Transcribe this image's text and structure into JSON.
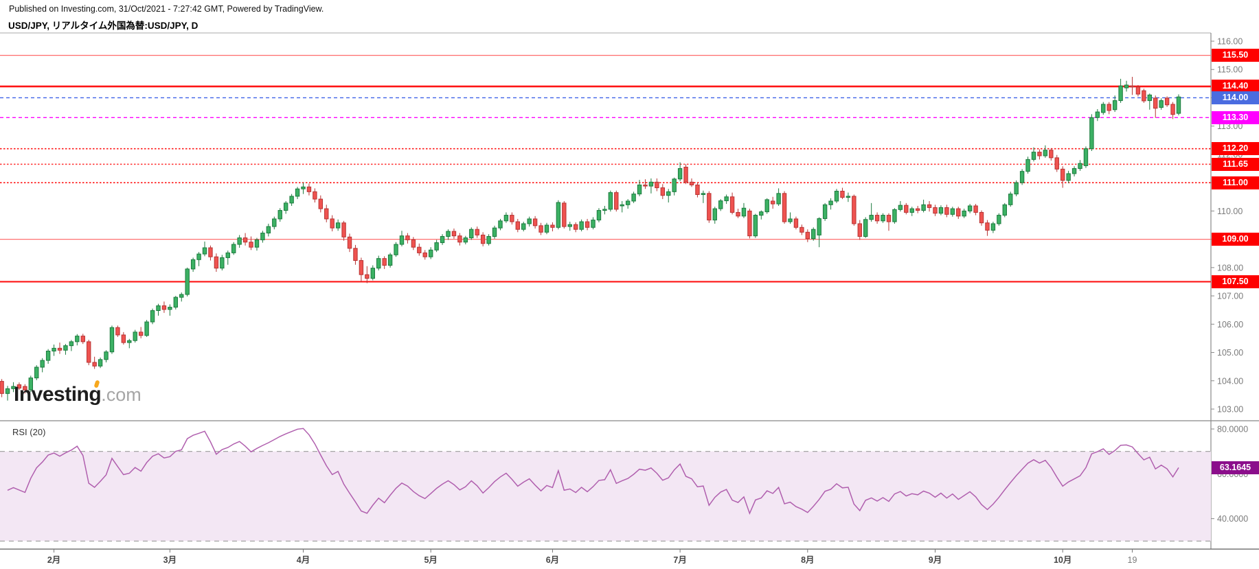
{
  "header": {
    "published_line": "Published on Investing.com, 31/Oct/2021 - 7:27:42 GMT, Powered by TradingView.",
    "title": "USD/JPY, リアルタイム外国為替:USD/JPY, D"
  },
  "watermark": {
    "brand": "Investing",
    "suffix": ".com",
    "accent_color": "#f7a81d"
  },
  "price_axis": {
    "ticks": [
      "116.00",
      "115.00",
      "114.00",
      "113.00",
      "112.00",
      "111.00",
      "110.00",
      "109.00",
      "108.00",
      "107.00",
      "106.00",
      "105.00",
      "104.00",
      "103.00"
    ],
    "min": 103,
    "max": 116
  },
  "levels": [
    {
      "label": "115.50",
      "price": 115.5,
      "line": "solid",
      "width": 1.2,
      "line_color": "#ff6b6b",
      "badge_color": "#fe0000"
    },
    {
      "label": "114.40",
      "price": 114.4,
      "line": "solid",
      "width": 2.6,
      "line_color": "#fe1414",
      "badge_color": "#fe0000"
    },
    {
      "label": "114.00",
      "price": 114.0,
      "line": "dashed",
      "width": 1.4,
      "line_color": "#3e62e8",
      "badge_color": "#4a6ce0"
    },
    {
      "label": "113.30",
      "price": 113.3,
      "line": "dashed",
      "width": 1.4,
      "line_color": "#ff00ff",
      "badge_color": "#ff00ff"
    },
    {
      "label": "112.20",
      "price": 112.2,
      "line": "dotted",
      "width": 1.6,
      "line_color": "#ff1515",
      "badge_color": "#fe0000"
    },
    {
      "label": "111.65",
      "price": 111.65,
      "line": "dotted",
      "width": 1.6,
      "line_color": "#ff3b3b",
      "badge_color": "#fe0000"
    },
    {
      "label": "111.00",
      "price": 111.0,
      "line": "dotted",
      "width": 1.6,
      "line_color": "#ff1515",
      "badge_color": "#fe0000"
    },
    {
      "label": "109.00",
      "price": 109.0,
      "line": "solid",
      "width": 1.2,
      "line_color": "#ff7070",
      "badge_color": "#fe0000"
    },
    {
      "label": "107.50",
      "price": 107.5,
      "line": "solid",
      "width": 2.2,
      "line_color": "#fe1414",
      "badge_color": "#fe0000"
    }
  ],
  "chart_data": {
    "type": "candlestick",
    "symbol": "USD/JPY",
    "interval": "D",
    "ylim": [
      103,
      116
    ],
    "up_color": "#3cb164",
    "up_border": "#1b7a3d",
    "down_color": "#ef5350",
    "down_border": "#b73333",
    "candles": [
      [
        103.98,
        104.06,
        103.42,
        103.55
      ],
      [
        103.55,
        103.82,
        103.3,
        103.72
      ],
      [
        103.72,
        103.95,
        103.6,
        103.8
      ],
      [
        103.86,
        103.94,
        103.68,
        103.74
      ],
      [
        103.8,
        103.88,
        103.55,
        103.68
      ],
      [
        103.68,
        104.18,
        103.6,
        104.1
      ],
      [
        104.1,
        104.55,
        104.02,
        104.48
      ],
      [
        104.48,
        104.8,
        104.3,
        104.72
      ],
      [
        104.72,
        105.12,
        104.6,
        105.05
      ],
      [
        105.05,
        105.28,
        104.88,
        105.15
      ],
      [
        105.15,
        105.35,
        104.95,
        105.08
      ],
      [
        105.08,
        105.3,
        104.92,
        105.24
      ],
      [
        105.24,
        105.44,
        105.05,
        105.38
      ],
      [
        105.38,
        105.65,
        105.25,
        105.58
      ],
      [
        105.58,
        105.66,
        105.3,
        105.38
      ],
      [
        105.38,
        105.45,
        104.55,
        104.65
      ],
      [
        104.65,
        104.85,
        104.42,
        104.52
      ],
      [
        104.52,
        104.82,
        104.45,
        104.75
      ],
      [
        104.75,
        105.08,
        104.65,
        105.02
      ],
      [
        105.02,
        105.95,
        104.95,
        105.88
      ],
      [
        105.88,
        105.95,
        105.55,
        105.62
      ],
      [
        105.62,
        105.72,
        105.28,
        105.35
      ],
      [
        105.35,
        105.48,
        105.15,
        105.42
      ],
      [
        105.42,
        105.8,
        105.35,
        105.72
      ],
      [
        105.72,
        105.9,
        105.5,
        105.6
      ],
      [
        105.6,
        106.15,
        105.55,
        106.08
      ],
      [
        106.08,
        106.55,
        106.0,
        106.48
      ],
      [
        106.48,
        106.72,
        106.3,
        106.65
      ],
      [
        106.65,
        106.8,
        106.4,
        106.52
      ],
      [
        106.52,
        106.7,
        106.3,
        106.6
      ],
      [
        106.6,
        107.0,
        106.52,
        106.95
      ],
      [
        106.95,
        107.12,
        106.8,
        107.05
      ],
      [
        107.05,
        108.0,
        106.98,
        107.95
      ],
      [
        107.95,
        108.35,
        107.85,
        108.28
      ],
      [
        108.28,
        108.55,
        108.05,
        108.48
      ],
      [
        108.48,
        108.92,
        108.4,
        108.7
      ],
      [
        108.7,
        108.78,
        108.25,
        108.38
      ],
      [
        108.38,
        108.5,
        107.85,
        107.98
      ],
      [
        107.98,
        108.45,
        107.9,
        108.35
      ],
      [
        108.35,
        108.6,
        108.1,
        108.52
      ],
      [
        108.52,
        108.9,
        108.45,
        108.82
      ],
      [
        108.82,
        109.15,
        108.7,
        109.05
      ],
      [
        109.05,
        109.22,
        108.78,
        108.9
      ],
      [
        108.9,
        109.1,
        108.62,
        108.72
      ],
      [
        108.72,
        109.05,
        108.6,
        108.98
      ],
      [
        108.98,
        109.3,
        108.88,
        109.22
      ],
      [
        109.22,
        109.55,
        109.1,
        109.45
      ],
      [
        109.45,
        109.8,
        109.35,
        109.72
      ],
      [
        109.72,
        110.1,
        109.62,
        110.02
      ],
      [
        110.02,
        110.35,
        109.9,
        110.28
      ],
      [
        110.28,
        110.6,
        110.18,
        110.52
      ],
      [
        110.52,
        110.85,
        110.42,
        110.78
      ],
      [
        110.78,
        111.0,
        110.6,
        110.85
      ],
      [
        110.85,
        110.97,
        110.55,
        110.68
      ],
      [
        110.68,
        110.8,
        110.3,
        110.42
      ],
      [
        110.42,
        110.55,
        109.95,
        110.08
      ],
      [
        110.08,
        110.22,
        109.6,
        109.72
      ],
      [
        109.72,
        109.85,
        109.28,
        109.4
      ],
      [
        109.4,
        109.7,
        109.3,
        109.58
      ],
      [
        109.58,
        109.65,
        108.95,
        109.08
      ],
      [
        109.08,
        109.2,
        108.55,
        108.68
      ],
      [
        108.68,
        108.8,
        108.1,
        108.25
      ],
      [
        108.25,
        108.35,
        107.48,
        107.75
      ],
      [
        107.75,
        108.05,
        107.45,
        107.62
      ],
      [
        107.62,
        108.08,
        107.55,
        107.98
      ],
      [
        107.98,
        108.42,
        107.9,
        108.32
      ],
      [
        108.32,
        108.4,
        107.95,
        108.08
      ],
      [
        108.08,
        108.52,
        108.0,
        108.45
      ],
      [
        108.45,
        108.9,
        108.38,
        108.82
      ],
      [
        108.82,
        109.3,
        108.75,
        109.12
      ],
      [
        109.12,
        109.22,
        108.85,
        108.98
      ],
      [
        108.98,
        109.08,
        108.62,
        108.72
      ],
      [
        108.72,
        108.85,
        108.42,
        108.52
      ],
      [
        108.52,
        108.62,
        108.28,
        108.38
      ],
      [
        108.38,
        108.72,
        108.3,
        108.62
      ],
      [
        108.62,
        108.98,
        108.55,
        108.88
      ],
      [
        108.88,
        109.18,
        108.8,
        109.1
      ],
      [
        109.1,
        109.35,
        108.98,
        109.28
      ],
      [
        109.28,
        109.38,
        109.02,
        109.12
      ],
      [
        109.12,
        109.22,
        108.78,
        108.9
      ],
      [
        108.9,
        109.12,
        108.82,
        109.05
      ],
      [
        109.05,
        109.42,
        108.98,
        109.35
      ],
      [
        109.35,
        109.45,
        109.05,
        109.15
      ],
      [
        109.15,
        109.25,
        108.75,
        108.85
      ],
      [
        108.85,
        109.18,
        108.78,
        109.1
      ],
      [
        109.1,
        109.48,
        109.02,
        109.4
      ],
      [
        109.4,
        109.72,
        109.32,
        109.65
      ],
      [
        109.65,
        109.95,
        109.58,
        109.85
      ],
      [
        109.85,
        109.95,
        109.52,
        109.62
      ],
      [
        109.62,
        109.72,
        109.25,
        109.35
      ],
      [
        109.35,
        109.62,
        109.28,
        109.55
      ],
      [
        109.55,
        109.8,
        109.45,
        109.72
      ],
      [
        109.72,
        109.82,
        109.38,
        109.48
      ],
      [
        109.48,
        109.58,
        109.15,
        109.25
      ],
      [
        109.25,
        109.58,
        109.18,
        109.5
      ],
      [
        109.5,
        109.6,
        109.28,
        109.42
      ],
      [
        109.42,
        110.38,
        109.35,
        110.3
      ],
      [
        110.28,
        110.35,
        109.38,
        109.45
      ],
      [
        109.45,
        109.62,
        109.3,
        109.52
      ],
      [
        109.52,
        109.6,
        109.25,
        109.35
      ],
      [
        109.35,
        109.7,
        109.28,
        109.62
      ],
      [
        109.62,
        109.72,
        109.32,
        109.42
      ],
      [
        109.42,
        109.78,
        109.35,
        109.68
      ],
      [
        109.68,
        110.1,
        109.6,
        110.02
      ],
      [
        110.02,
        110.18,
        109.88,
        110.06
      ],
      [
        110.06,
        110.72,
        109.98,
        110.65
      ],
      [
        110.65,
        110.72,
        109.98,
        110.06
      ],
      [
        110.18,
        110.35,
        109.95,
        110.22
      ],
      [
        110.22,
        110.42,
        110.08,
        110.35
      ],
      [
        110.35,
        110.68,
        110.28,
        110.6
      ],
      [
        110.6,
        111.1,
        110.52,
        110.92
      ],
      [
        110.92,
        111.12,
        110.78,
        110.88
      ],
      [
        110.88,
        111.15,
        110.62,
        111.02
      ],
      [
        111.02,
        111.15,
        110.7,
        110.82
      ],
      [
        110.82,
        110.95,
        110.42,
        110.55
      ],
      [
        110.55,
        110.78,
        110.3,
        110.68
      ],
      [
        110.68,
        111.18,
        110.55,
        111.13
      ],
      [
        111.13,
        111.72,
        111.05,
        111.5
      ],
      [
        111.55,
        111.65,
        110.95,
        111.02
      ],
      [
        111.02,
        111.15,
        110.85,
        110.92
      ],
      [
        110.92,
        111.0,
        110.48,
        110.58
      ],
      [
        110.58,
        110.72,
        110.28,
        110.62
      ],
      [
        110.62,
        110.7,
        109.58,
        109.68
      ],
      [
        109.68,
        110.15,
        109.55,
        110.08
      ],
      [
        110.08,
        110.42,
        110.0,
        110.36
      ],
      [
        110.36,
        110.58,
        110.25,
        110.5
      ],
      [
        110.5,
        110.65,
        109.88,
        109.95
      ],
      [
        109.95,
        110.08,
        109.75,
        109.82
      ],
      [
        109.82,
        110.28,
        109.75,
        110.1
      ],
      [
        110.0,
        110.08,
        109.03,
        109.12
      ],
      [
        109.12,
        109.9,
        109.05,
        109.85
      ],
      [
        109.85,
        110.02,
        109.7,
        109.97
      ],
      [
        109.97,
        110.45,
        109.9,
        110.4
      ],
      [
        110.35,
        110.5,
        110.08,
        110.25
      ],
      [
        110.25,
        110.8,
        110.18,
        110.62
      ],
      [
        110.62,
        110.7,
        109.55,
        109.62
      ],
      [
        109.62,
        109.95,
        109.55,
        109.72
      ],
      [
        109.72,
        109.8,
        109.35,
        109.42
      ],
      [
        109.42,
        109.52,
        109.15,
        109.25
      ],
      [
        109.25,
        109.35,
        108.9,
        109.02
      ],
      [
        109.02,
        109.42,
        108.95,
        109.35
      ],
      [
        109.15,
        109.78,
        108.72,
        109.73
      ],
      [
        109.73,
        110.28,
        109.65,
        110.22
      ],
      [
        110.22,
        110.45,
        110.05,
        110.35
      ],
      [
        110.35,
        110.78,
        110.28,
        110.7
      ],
      [
        110.7,
        110.82,
        110.42,
        110.48
      ],
      [
        110.48,
        110.65,
        110.32,
        110.52
      ],
      [
        110.52,
        110.58,
        109.48,
        109.55
      ],
      [
        109.55,
        109.68,
        108.98,
        109.1
      ],
      [
        109.1,
        109.78,
        109.05,
        109.7
      ],
      [
        109.7,
        110.28,
        109.62,
        109.85
      ],
      [
        109.85,
        109.95,
        109.55,
        109.65
      ],
      [
        109.65,
        109.92,
        109.58,
        109.85
      ],
      [
        109.85,
        109.92,
        109.3,
        109.62
      ],
      [
        109.62,
        110.1,
        109.55,
        110.05
      ],
      [
        110.05,
        110.35,
        109.98,
        110.2
      ],
      [
        110.2,
        110.28,
        109.88,
        109.95
      ],
      [
        109.95,
        110.15,
        109.82,
        110.08
      ],
      [
        110.08,
        110.18,
        109.92,
        110.02
      ],
      [
        110.02,
        110.4,
        109.95,
        110.22
      ],
      [
        110.22,
        110.35,
        109.98,
        110.12
      ],
      [
        110.12,
        110.22,
        109.82,
        109.92
      ],
      [
        109.92,
        110.2,
        109.85,
        110.12
      ],
      [
        110.12,
        110.22,
        109.78,
        109.88
      ],
      [
        109.88,
        110.15,
        109.8,
        110.08
      ],
      [
        110.08,
        110.15,
        109.72,
        109.82
      ],
      [
        109.82,
        110.08,
        109.75,
        110.0
      ],
      [
        110.0,
        110.25,
        109.92,
        110.18
      ],
      [
        110.18,
        110.25,
        109.85,
        109.95
      ],
      [
        109.95,
        110.02,
        109.48,
        109.58
      ],
      [
        109.58,
        109.68,
        109.12,
        109.32
      ],
      [
        109.32,
        109.62,
        109.22,
        109.55
      ],
      [
        109.55,
        109.92,
        109.48,
        109.85
      ],
      [
        109.85,
        110.28,
        109.78,
        110.22
      ],
      [
        110.22,
        110.68,
        110.15,
        110.6
      ],
      [
        110.6,
        111.08,
        110.52,
        111.0
      ],
      [
        111.0,
        111.48,
        110.92,
        111.4
      ],
      [
        111.4,
        111.92,
        111.32,
        111.82
      ],
      [
        111.82,
        112.25,
        111.75,
        112.08
      ],
      [
        112.08,
        112.18,
        111.82,
        111.95
      ],
      [
        111.95,
        112.32,
        111.88,
        112.15
      ],
      [
        112.15,
        112.22,
        111.78,
        111.88
      ],
      [
        111.88,
        111.98,
        111.38,
        111.48
      ],
      [
        111.48,
        111.58,
        110.82,
        111.08
      ],
      [
        111.08,
        111.42,
        110.98,
        111.32
      ],
      [
        111.32,
        111.58,
        111.22,
        111.5
      ],
      [
        111.5,
        111.8,
        111.42,
        111.68
      ],
      [
        111.6,
        112.28,
        111.52,
        112.2
      ],
      [
        112.2,
        113.42,
        112.12,
        113.3
      ],
      [
        113.3,
        113.6,
        113.18,
        113.5
      ],
      [
        113.48,
        113.85,
        113.4,
        113.77
      ],
      [
        113.77,
        113.85,
        113.42,
        113.55
      ],
      [
        113.58,
        114.08,
        113.5,
        113.9
      ],
      [
        113.9,
        114.67,
        113.82,
        114.42
      ],
      [
        114.35,
        114.6,
        114.22,
        114.45
      ],
      [
        114.42,
        114.74,
        114.1,
        114.38
      ],
      [
        114.38,
        114.45,
        114.05,
        114.13
      ],
      [
        114.25,
        114.32,
        113.82,
        113.89
      ],
      [
        113.9,
        114.15,
        113.58,
        114.1
      ],
      [
        113.99,
        114.08,
        113.29,
        113.63
      ],
      [
        113.66,
        113.98,
        113.58,
        113.9
      ],
      [
        113.99,
        114.05,
        113.68,
        113.75
      ],
      [
        113.77,
        113.85,
        113.25,
        113.41
      ],
      [
        113.45,
        114.12,
        113.38,
        114.03
      ]
    ],
    "month_ticks": [
      {
        "i": 9,
        "label": "2月",
        "strong": true
      },
      {
        "i": 29,
        "label": "3月",
        "strong": true
      },
      {
        "i": 52,
        "label": "4月",
        "strong": true
      },
      {
        "i": 74,
        "label": "5月",
        "strong": true
      },
      {
        "i": 95,
        "label": "6月",
        "strong": true
      },
      {
        "i": 117,
        "label": "7月",
        "strong": true
      },
      {
        "i": 139,
        "label": "8月",
        "strong": true
      },
      {
        "i": 161,
        "label": "9月",
        "strong": true
      },
      {
        "i": 183,
        "label": "10月",
        "strong": true
      },
      {
        "i": 195,
        "label": "19",
        "strong": false
      }
    ]
  },
  "rsi": {
    "label": "RSI (20)",
    "period": 20,
    "last_label": "63.1645",
    "axis_ticks": [
      "80.0000",
      "60.0000",
      "40.0000"
    ],
    "upper_band": 70,
    "lower_band": 30,
    "line_color": "#b05fae",
    "band_fill": "#f3e7f4",
    "band_border_color": "#9b9b9b",
    "badge_color": "#8b0e8b"
  }
}
